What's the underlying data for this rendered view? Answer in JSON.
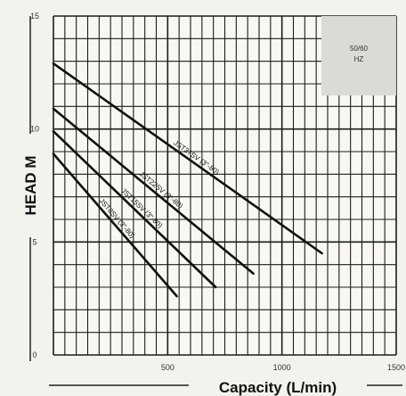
{
  "chart_data": {
    "type": "line",
    "xlabel": "Capacity (L/min)",
    "ylabel": "HEAD M",
    "xlim": [
      0,
      1500
    ],
    "ylim": [
      0,
      15
    ],
    "x_ticks": [
      "500",
      "1000",
      "1500"
    ],
    "y_ticks": [
      "0",
      "5",
      "10",
      "15"
    ],
    "grid": true,
    "annotation": "50/60\nHZ",
    "series": [
      {
        "name": "JST37SV (3\"-80)",
        "x": [
          0,
          1175
        ],
        "y": [
          12.9,
          4.5
        ]
      },
      {
        "name": "JST22SV (3\"-80)",
        "x": [
          0,
          875
        ],
        "y": [
          10.9,
          3.6
        ]
      },
      {
        "name": "JST15SV (3\"-80)",
        "x": [
          0,
          710
        ],
        "y": [
          9.9,
          3.0
        ]
      },
      {
        "name": "JST8SV (3\"-80)",
        "x": [
          0,
          540
        ],
        "y": [
          8.9,
          2.6
        ]
      }
    ]
  }
}
